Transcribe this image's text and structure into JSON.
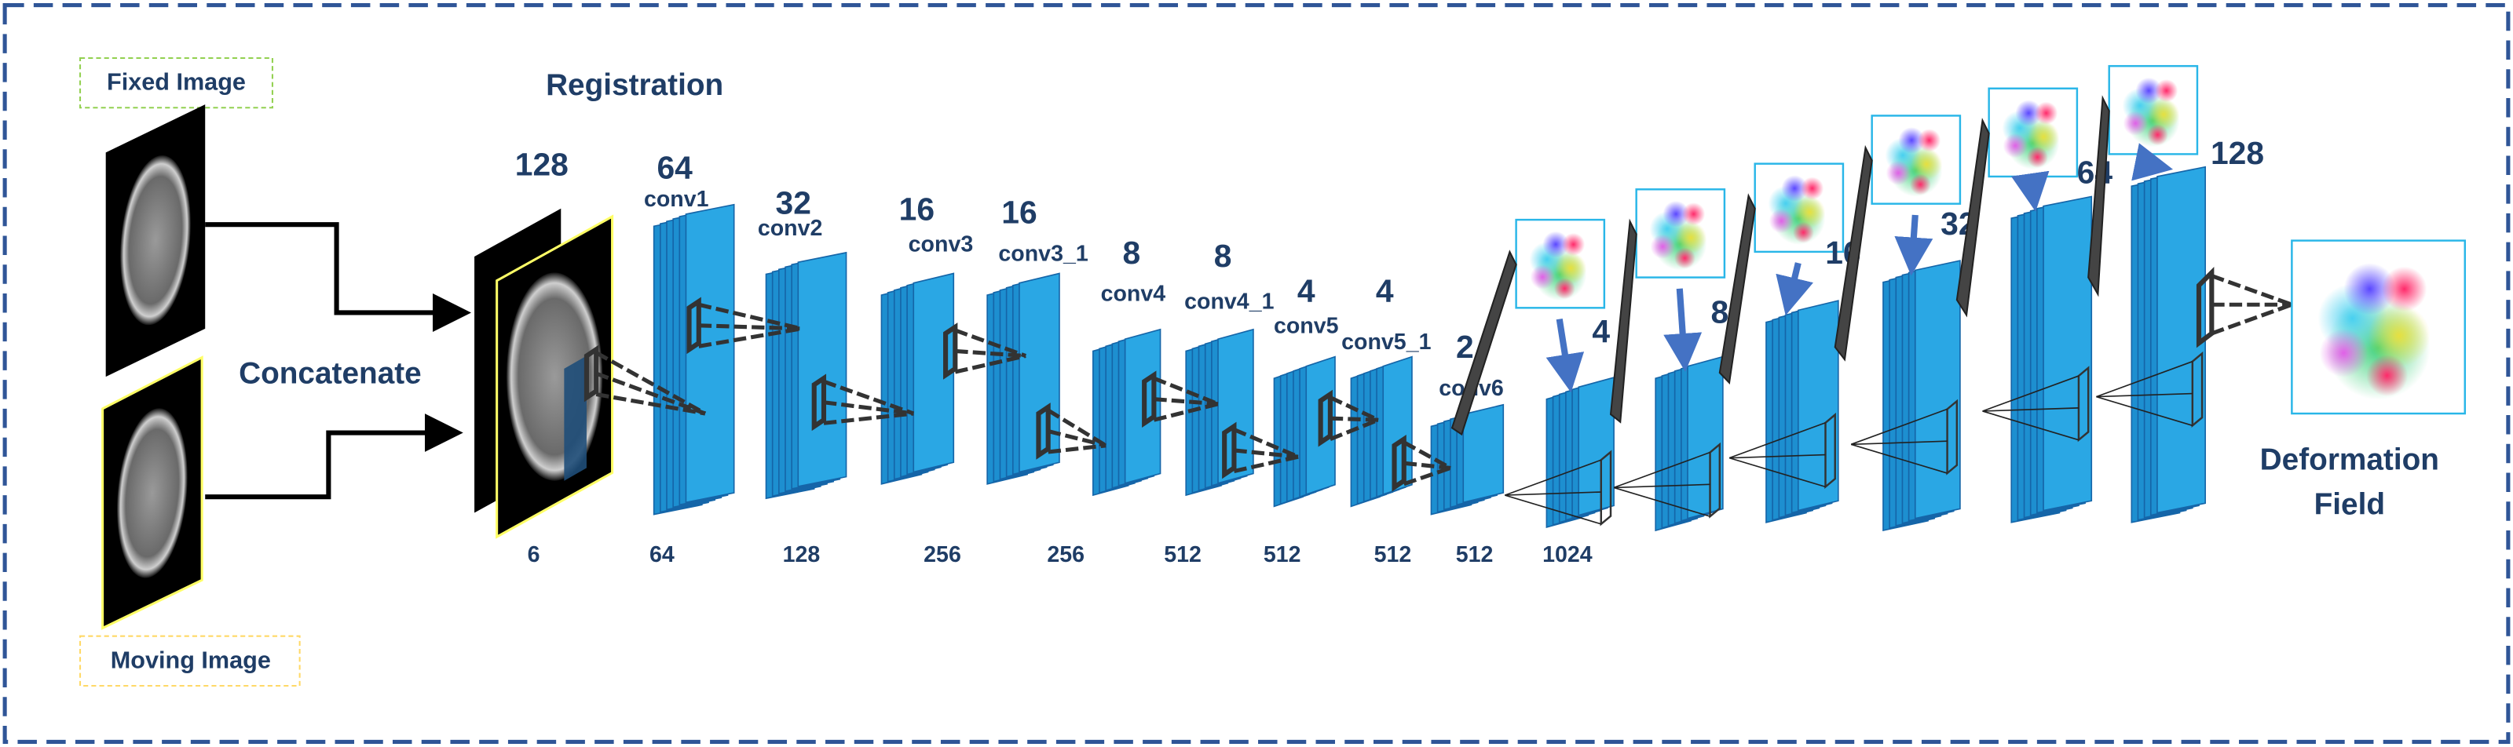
{
  "inputs": {
    "fixed": "Fixed Image",
    "moving": "Moving Image",
    "concatenate": "Concatenate"
  },
  "title": "Registration",
  "encoder": [
    {
      "size": "128"
    },
    {
      "size": "64",
      "name": "conv1"
    },
    {
      "size": "32",
      "name": "conv2"
    },
    {
      "size": "16",
      "name": "conv3"
    },
    {
      "size": "16",
      "name": "conv3_1"
    },
    {
      "size": "8",
      "name": "conv4"
    },
    {
      "size": "8",
      "name": "conv4_1"
    },
    {
      "size": "4",
      "name": "conv5"
    },
    {
      "size": "4",
      "name": "conv5_1"
    },
    {
      "size": "2",
      "name": "conv6"
    }
  ],
  "channels": [
    "6",
    "64",
    "128",
    "256",
    "256",
    "512",
    "512",
    "512",
    "512",
    "1024"
  ],
  "decoder": [
    {
      "size": "4"
    },
    {
      "size": "8"
    },
    {
      "size": "16"
    },
    {
      "size": "32"
    },
    {
      "size": "64"
    },
    {
      "size": "128"
    }
  ],
  "output": [
    "Deformation",
    "Field"
  ]
}
